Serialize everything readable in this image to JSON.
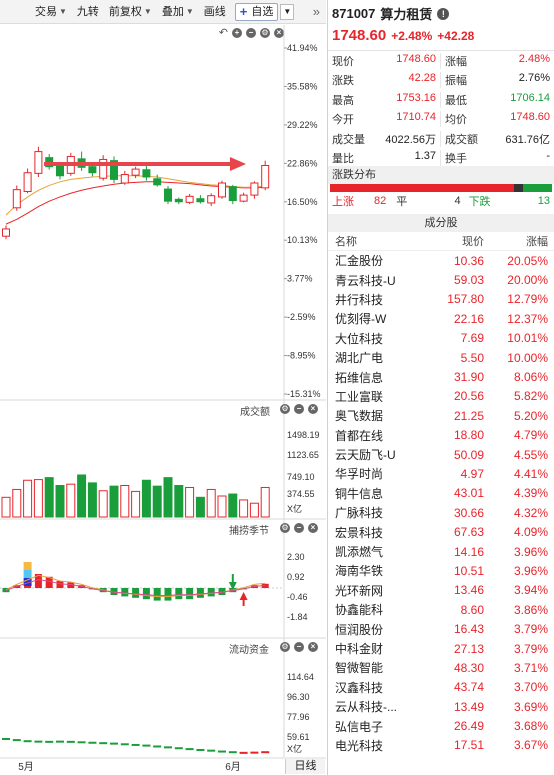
{
  "toolbar": {
    "items": [
      "交易",
      "九转",
      "前复权",
      "叠加",
      "画线"
    ],
    "zixuan_label": "自选",
    "more_label": "»"
  },
  "chart_data": {
    "type": "candlestick",
    "price_axis_labels": [
      "41.94%",
      "35.58%",
      "29.22%",
      "22.86%",
      "16.50%",
      "10.13%",
      "3.77%",
      "-2.59%",
      "-8.95%",
      "-15.31%"
    ],
    "candles": [
      {
        "o": 10.8,
        "c": 12.0,
        "h": 12.6,
        "l": 10.3
      },
      {
        "o": 15.5,
        "c": 18.5,
        "h": 19.2,
        "l": 15.0
      },
      {
        "o": 18.2,
        "c": 21.3,
        "h": 22.0,
        "l": 17.9
      },
      {
        "o": 21.2,
        "c": 24.8,
        "h": 25.6,
        "l": 20.6
      },
      {
        "o": 23.8,
        "c": 22.3,
        "h": 24.4,
        "l": 21.8
      },
      {
        "o": 22.4,
        "c": 20.8,
        "h": 23.0,
        "l": 20.2
      },
      {
        "o": 21.2,
        "c": 24.0,
        "h": 24.6,
        "l": 20.8
      },
      {
        "o": 23.6,
        "c": 22.2,
        "h": 24.8,
        "l": 21.6
      },
      {
        "o": 22.3,
        "c": 21.3,
        "h": 23.0,
        "l": 20.7
      },
      {
        "o": 20.4,
        "c": 23.5,
        "h": 24.2,
        "l": 20.0
      },
      {
        "o": 23.3,
        "c": 20.2,
        "h": 24.0,
        "l": 19.6
      },
      {
        "o": 19.6,
        "c": 21.0,
        "h": 21.6,
        "l": 19.3
      },
      {
        "o": 20.9,
        "c": 21.9,
        "h": 22.3,
        "l": 20.4
      },
      {
        "o": 21.8,
        "c": 20.6,
        "h": 22.6,
        "l": 20.0
      },
      {
        "o": 20.3,
        "c": 19.3,
        "h": 21.0,
        "l": 19.0
      },
      {
        "o": 18.6,
        "c": 16.6,
        "h": 19.1,
        "l": 16.1
      },
      {
        "o": 16.9,
        "c": 16.5,
        "h": 17.2,
        "l": 16.1
      },
      {
        "o": 16.4,
        "c": 17.4,
        "h": 17.8,
        "l": 16.1
      },
      {
        "o": 17.0,
        "c": 16.5,
        "h": 17.6,
        "l": 16.2
      },
      {
        "o": 16.3,
        "c": 17.5,
        "h": 17.9,
        "l": 15.8
      },
      {
        "o": 17.3,
        "c": 19.6,
        "h": 20.0,
        "l": 17.0
      },
      {
        "o": 19.0,
        "c": 16.7,
        "h": 19.3,
        "l": 16.1
      },
      {
        "o": 16.6,
        "c": 17.6,
        "h": 18.0,
        "l": 16.4
      },
      {
        "o": 17.6,
        "c": 19.6,
        "h": 19.9,
        "l": 17.0
      },
      {
        "o": 18.8,
        "c": 22.5,
        "h": 23.3,
        "l": 18.4
      }
    ],
    "ma_a": [
      14.3,
      16.0,
      17.3,
      18.4,
      19.2,
      19.8,
      20.2,
      20.4,
      20.6,
      20.7,
      20.8,
      20.8,
      20.8,
      20.7,
      20.6,
      20.3,
      20.0,
      19.7,
      19.5,
      19.3,
      19.2,
      19.0,
      18.9,
      18.9,
      19.1
    ],
    "ma_b": [
      12.8,
      13.6,
      14.6,
      15.7,
      16.6,
      17.3,
      17.9,
      18.4,
      18.8,
      19.1,
      19.4,
      19.6,
      19.7,
      19.8,
      19.8,
      19.7,
      19.6,
      19.5,
      19.3,
      19.1,
      19.0,
      18.9,
      18.8,
      18.8,
      18.9
    ],
    "volume_pane": {
      "title": "成交额",
      "axis_labels": [
        "1498.19",
        "1123.65",
        "749.10",
        "374.55",
        "X亿"
      ],
      "values": [
        300,
        420,
        560,
        570,
        600,
        480,
        500,
        640,
        520,
        400,
        470,
        480,
        390,
        560,
        470,
        600,
        480,
        450,
        300,
        420,
        320,
        350,
        260,
        210,
        450
      ]
    },
    "indicator_pane": {
      "title": "捕捞季节",
      "axis_labels": [
        "2.30",
        "0.92",
        "-0.46",
        "-1.84"
      ]
    },
    "capital_pane": {
      "title": "流动资金",
      "axis_labels": [
        "114.64",
        "96.30",
        "77.96",
        "59.61",
        "X亿"
      ]
    },
    "x_labels": [
      "5月",
      "6月"
    ],
    "bottom_button": "日线"
  },
  "stock": {
    "code": "871007",
    "name": "算力租赁",
    "price": "1748.60",
    "change_pct": "+2.48%",
    "change_abs": "+42.28"
  },
  "quote": [
    [
      [
        "现价",
        "1748.60",
        "red"
      ],
      [
        "涨幅",
        "2.48%",
        "red"
      ]
    ],
    [
      [
        "涨跌",
        "42.28",
        "red"
      ],
      [
        "振幅",
        "2.76%",
        "blk"
      ]
    ],
    [
      [
        "最高",
        "1753.16",
        "red"
      ],
      [
        "最低",
        "1706.14",
        "green"
      ]
    ],
    [
      [
        "今开",
        "1710.74",
        "red"
      ],
      [
        "均价",
        "1748.60",
        "red"
      ]
    ],
    [
      [
        "成交量",
        "4022.56万",
        "blk"
      ],
      [
        "成交额",
        "631.76亿",
        "blk"
      ]
    ],
    [
      [
        "量比",
        "1.37",
        "blk"
      ],
      [
        "换手",
        "-",
        "blk"
      ]
    ]
  ],
  "distribution": {
    "title": "涨跌分布",
    "up_label": "上涨",
    "up": "82",
    "flat_label": "平",
    "flat": "4",
    "down_label": "下跌",
    "down": "13",
    "up_value": 82,
    "flat_value": 4,
    "down_value": 13
  },
  "constituents": {
    "title": "成分股",
    "headers": [
      "名称",
      "现价",
      "涨幅"
    ],
    "rows": [
      [
        "汇金股份",
        "10.36",
        "20.05%"
      ],
      [
        "青云科技-U",
        "59.03",
        "20.00%"
      ],
      [
        "井行科技",
        "157.80",
        "12.79%"
      ],
      [
        "优刻得-W",
        "22.16",
        "12.37%"
      ],
      [
        "大位科技",
        "7.69",
        "10.01%"
      ],
      [
        "湖北广电",
        "5.50",
        "10.00%"
      ],
      [
        "拓维信息",
        "31.90",
        "8.06%"
      ],
      [
        "工业富联",
        "20.56",
        "5.82%"
      ],
      [
        "奥飞数据",
        "21.25",
        "5.20%"
      ],
      [
        "首都在线",
        "18.80",
        "4.79%"
      ],
      [
        "云天励飞-U",
        "50.09",
        "4.55%"
      ],
      [
        "华孚时尚",
        "4.97",
        "4.41%"
      ],
      [
        "铜牛信息",
        "43.01",
        "4.39%"
      ],
      [
        "广脉科技",
        "30.66",
        "4.32%"
      ],
      [
        "宏景科技",
        "67.63",
        "4.09%"
      ],
      [
        "凯添燃气",
        "14.16",
        "3.96%"
      ],
      [
        "海南华铁",
        "10.51",
        "3.96%"
      ],
      [
        "光环新网",
        "13.46",
        "3.94%"
      ],
      [
        "协鑫能科",
        "8.60",
        "3.86%"
      ],
      [
        "恒润股份",
        "16.43",
        "3.79%"
      ],
      [
        "中科金财",
        "27.13",
        "3.79%"
      ],
      [
        "智微智能",
        "48.30",
        "3.71%"
      ],
      [
        "汉鑫科技",
        "43.74",
        "3.70%"
      ],
      [
        "云从科技-...",
        "13.49",
        "3.69%"
      ],
      [
        "弘信电子",
        "26.49",
        "3.68%"
      ],
      [
        "电光科技",
        "17.51",
        "3.67%"
      ]
    ]
  },
  "colors": {
    "up": "#e8242b",
    "down": "#1a9e3c",
    "ma_a": "#e8a13a",
    "ma_b": "#e8242b",
    "arrow": "#e8444b"
  }
}
